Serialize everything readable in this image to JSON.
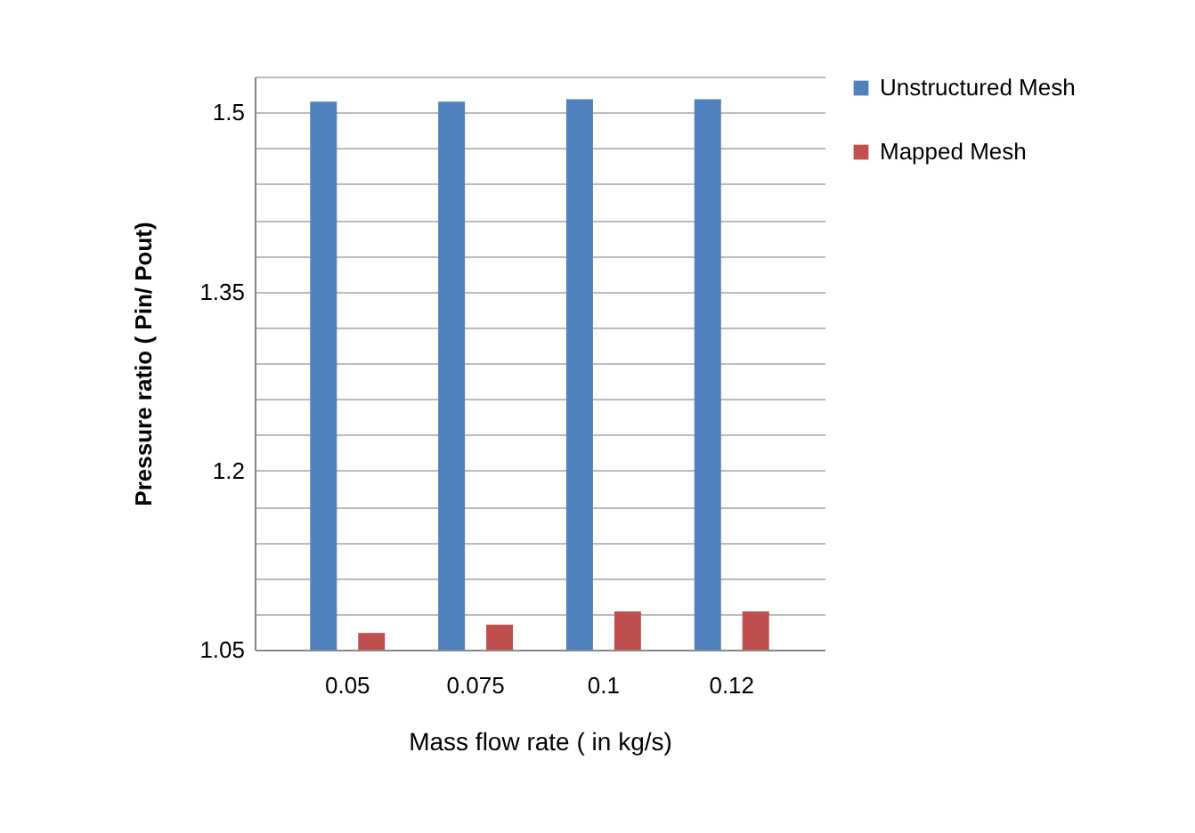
{
  "chart_data": {
    "type": "bar",
    "xlabel": "Mass flow rate ( in kg/s)",
    "ylabel": "Pressure ratio ( Pin/ Pout)",
    "categories": [
      "0.05",
      "0.075",
      "0.1",
      "0.12"
    ],
    "series": [
      {
        "name": "Unstructured Mesh",
        "color": "#4f81bd",
        "values": [
          1.509,
          1.509,
          1.511,
          1.511
        ]
      },
      {
        "name": "Mapped Mesh",
        "color": "#c0504d",
        "values": [
          1.064,
          1.071,
          1.082,
          1.082
        ]
      }
    ],
    "ylim": [
      1.05,
      1.53
    ],
    "yticks": [
      1.05,
      {
        "value": 1.08,
        "label": null
      },
      {
        "value": 1.11,
        "label": null
      },
      {
        "value": 1.14,
        "label": null
      },
      {
        "value": 1.17,
        "label": null
      },
      1.2,
      {
        "value": 1.23,
        "label": null
      },
      {
        "value": 1.26,
        "label": null
      },
      {
        "value": 1.29,
        "label": null
      },
      {
        "value": 1.32,
        "label": null
      },
      1.35,
      {
        "value": 1.38,
        "label": null
      },
      {
        "value": 1.41,
        "label": null
      },
      {
        "value": 1.44,
        "label": null
      },
      {
        "value": 1.47,
        "label": null
      },
      1.5,
      {
        "value": 1.53,
        "label": null
      }
    ],
    "grid": "y",
    "legend": "right"
  }
}
